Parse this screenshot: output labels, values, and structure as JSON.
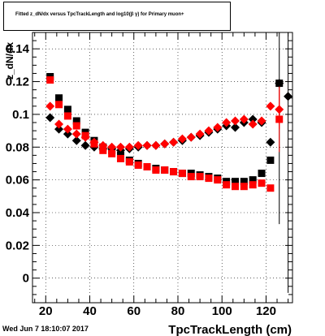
{
  "title": "Fitted z_dN/dx versus TpcTrackLength and log10(β γ) for Primary muon+",
  "timestamp": "Wed Jun  7 18:10:07 2017",
  "colors": {
    "series_black": "#000000",
    "series_red": "#ff0000",
    "axis": "#000000",
    "grid": "#000000"
  },
  "chart_data": {
    "type": "scatter",
    "title": "Fitted z_dN/dx versus TpcTrackLength and log10(β γ) for Primary muon+",
    "xlabel": "TpcTrackLength (cm)",
    "ylabel": "z_dN/dx",
    "xlim": [
      14,
      132
    ],
    "ylim": [
      -0.015,
      0.15
    ],
    "x_ticks": [
      20,
      40,
      60,
      80,
      100,
      120
    ],
    "x_tick_labels": [
      "20",
      "40",
      "60",
      "80",
      "100",
      "120"
    ],
    "y_ticks": [
      0,
      0.02,
      0.04,
      0.06,
      0.08,
      0.1,
      0.12,
      0.14
    ],
    "y_tick_labels": [
      "0",
      "0.02",
      "0.04",
      "0.06",
      "0.08",
      "0.1",
      "0.12",
      "0.14"
    ],
    "grid": true,
    "series": [
      {
        "marker": "diamond",
        "color": "#000000",
        "points": [
          {
            "x": 22,
            "y": 0.098
          },
          {
            "x": 26,
            "y": 0.091
          },
          {
            "x": 30,
            "y": 0.088
          },
          {
            "x": 34,
            "y": 0.084
          },
          {
            "x": 38,
            "y": 0.081
          },
          {
            "x": 42,
            "y": 0.08
          },
          {
            "x": 46,
            "y": 0.079
          },
          {
            "x": 50,
            "y": 0.079
          },
          {
            "x": 54,
            "y": 0.078
          },
          {
            "x": 58,
            "y": 0.079
          },
          {
            "x": 62,
            "y": 0.08
          },
          {
            "x": 66,
            "y": 0.081
          },
          {
            "x": 70,
            "y": 0.081
          },
          {
            "x": 74,
            "y": 0.082
          },
          {
            "x": 78,
            "y": 0.083
          },
          {
            "x": 82,
            "y": 0.084
          },
          {
            "x": 86,
            "y": 0.086
          },
          {
            "x": 90,
            "y": 0.087
          },
          {
            "x": 94,
            "y": 0.089
          },
          {
            "x": 98,
            "y": 0.091
          },
          {
            "x": 102,
            "y": 0.093
          },
          {
            "x": 106,
            "y": 0.092
          },
          {
            "x": 110,
            "y": 0.095
          },
          {
            "x": 114,
            "y": 0.097
          },
          {
            "x": 118,
            "y": 0.095
          },
          {
            "x": 122,
            "y": 0.083
          },
          {
            "x": 126,
            "y": 0.119,
            "err": 0.086
          },
          {
            "x": 130,
            "y": 0.111,
            "err": 0.12
          }
        ]
      },
      {
        "marker": "square",
        "color": "#000000",
        "points": [
          {
            "x": 22,
            "y": 0.123
          },
          {
            "x": 26,
            "y": 0.11
          },
          {
            "x": 30,
            "y": 0.103
          },
          {
            "x": 34,
            "y": 0.096
          },
          {
            "x": 38,
            "y": 0.089
          },
          {
            "x": 42,
            "y": 0.084
          },
          {
            "x": 46,
            "y": 0.08
          },
          {
            "x": 50,
            "y": 0.078
          },
          {
            "x": 54,
            "y": 0.075
          },
          {
            "x": 58,
            "y": 0.072
          },
          {
            "x": 62,
            "y": 0.07
          },
          {
            "x": 66,
            "y": 0.068
          },
          {
            "x": 70,
            "y": 0.067
          },
          {
            "x": 74,
            "y": 0.066
          },
          {
            "x": 78,
            "y": 0.065
          },
          {
            "x": 82,
            "y": 0.064
          },
          {
            "x": 86,
            "y": 0.064
          },
          {
            "x": 90,
            "y": 0.063
          },
          {
            "x": 94,
            "y": 0.062
          },
          {
            "x": 98,
            "y": 0.061
          },
          {
            "x": 102,
            "y": 0.059
          },
          {
            "x": 106,
            "y": 0.059
          },
          {
            "x": 110,
            "y": 0.059
          },
          {
            "x": 114,
            "y": 0.06
          },
          {
            "x": 118,
            "y": 0.064
          },
          {
            "x": 122,
            "y": 0.072
          },
          {
            "x": 126,
            "y": 0.119
          }
        ]
      },
      {
        "marker": "diamond",
        "color": "#ff0000",
        "points": [
          {
            "x": 22,
            "y": 0.105
          },
          {
            "x": 26,
            "y": 0.094
          },
          {
            "x": 30,
            "y": 0.091
          },
          {
            "x": 34,
            "y": 0.088
          },
          {
            "x": 38,
            "y": 0.086
          },
          {
            "x": 42,
            "y": 0.083
          },
          {
            "x": 46,
            "y": 0.081
          },
          {
            "x": 50,
            "y": 0.08
          },
          {
            "x": 54,
            "y": 0.08
          },
          {
            "x": 58,
            "y": 0.08
          },
          {
            "x": 62,
            "y": 0.081
          },
          {
            "x": 66,
            "y": 0.081
          },
          {
            "x": 70,
            "y": 0.081
          },
          {
            "x": 74,
            "y": 0.082
          },
          {
            "x": 78,
            "y": 0.083
          },
          {
            "x": 82,
            "y": 0.085
          },
          {
            "x": 86,
            "y": 0.086
          },
          {
            "x": 90,
            "y": 0.088
          },
          {
            "x": 94,
            "y": 0.09
          },
          {
            "x": 98,
            "y": 0.092
          },
          {
            "x": 102,
            "y": 0.095
          },
          {
            "x": 106,
            "y": 0.096
          },
          {
            "x": 110,
            "y": 0.097
          },
          {
            "x": 114,
            "y": 0.094
          },
          {
            "x": 118,
            "y": 0.096
          },
          {
            "x": 122,
            "y": 0.105
          },
          {
            "x": 126,
            "y": 0.103,
            "err": 0.012
          }
        ]
      },
      {
        "marker": "square",
        "color": "#ff0000",
        "points": [
          {
            "x": 22,
            "y": 0.121
          },
          {
            "x": 26,
            "y": 0.106
          },
          {
            "x": 30,
            "y": 0.099
          },
          {
            "x": 34,
            "y": 0.093
          },
          {
            "x": 38,
            "y": 0.087
          },
          {
            "x": 42,
            "y": 0.082
          },
          {
            "x": 46,
            "y": 0.078
          },
          {
            "x": 50,
            "y": 0.076
          },
          {
            "x": 54,
            "y": 0.073
          },
          {
            "x": 58,
            "y": 0.071
          },
          {
            "x": 62,
            "y": 0.069
          },
          {
            "x": 66,
            "y": 0.068
          },
          {
            "x": 70,
            "y": 0.066
          },
          {
            "x": 74,
            "y": 0.066
          },
          {
            "x": 78,
            "y": 0.065
          },
          {
            "x": 82,
            "y": 0.064
          },
          {
            "x": 86,
            "y": 0.062
          },
          {
            "x": 90,
            "y": 0.062
          },
          {
            "x": 94,
            "y": 0.061
          },
          {
            "x": 98,
            "y": 0.06
          },
          {
            "x": 102,
            "y": 0.057
          },
          {
            "x": 106,
            "y": 0.056
          },
          {
            "x": 110,
            "y": 0.056
          },
          {
            "x": 114,
            "y": 0.057
          },
          {
            "x": 118,
            "y": 0.058
          },
          {
            "x": 122,
            "y": 0.055
          },
          {
            "x": 126,
            "y": 0.097,
            "err": 0.02
          }
        ]
      }
    ]
  }
}
